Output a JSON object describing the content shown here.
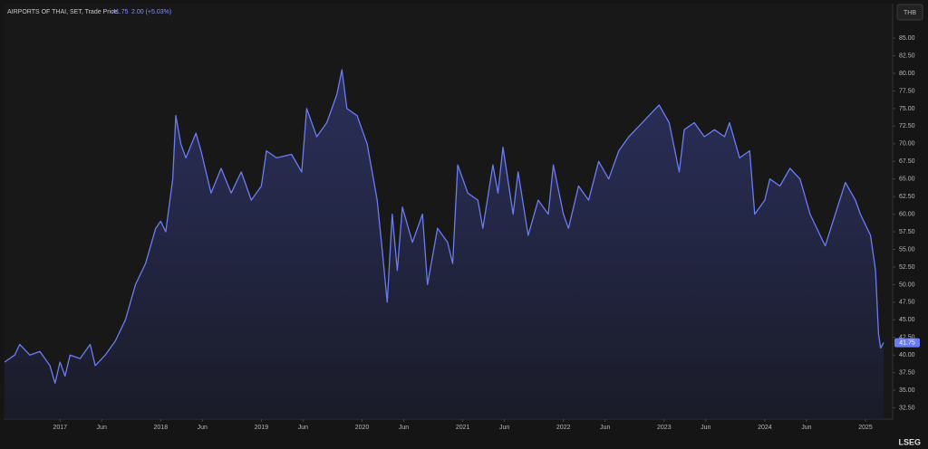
{
  "chart_data": {
    "type": "line",
    "title": "AIRPORTS OF THAI, SET, Trade Price",
    "change_label": "2.00 (+5.03%)",
    "currency": "THB",
    "brand": "LSEG",
    "x": [
      2016.45,
      2016.55,
      2016.6,
      2016.7,
      2016.8,
      2016.9,
      2016.95,
      2017.0,
      2017.05,
      2017.1,
      2017.2,
      2017.3,
      2017.35,
      2017.45,
      2017.55,
      2017.65,
      2017.75,
      2017.85,
      2017.95,
      2018.0,
      2018.05,
      2018.12,
      2018.15,
      2018.2,
      2018.25,
      2018.35,
      2018.4,
      2018.5,
      2018.6,
      2018.7,
      2018.8,
      2018.9,
      2019.0,
      2019.05,
      2019.15,
      2019.3,
      2019.4,
      2019.45,
      2019.55,
      2019.65,
      2019.75,
      2019.8,
      2019.85,
      2019.95,
      2020.05,
      2020.15,
      2020.2,
      2020.25,
      2020.3,
      2020.35,
      2020.4,
      2020.5,
      2020.6,
      2020.65,
      2020.75,
      2020.85,
      2020.9,
      2020.95,
      2021.05,
      2021.15,
      2021.2,
      2021.3,
      2021.35,
      2021.4,
      2021.5,
      2021.55,
      2021.65,
      2021.75,
      2021.85,
      2021.9,
      2022.0,
      2022.05,
      2022.15,
      2022.25,
      2022.35,
      2022.45,
      2022.55,
      2022.65,
      2022.75,
      2022.85,
      2022.95,
      2023.05,
      2023.15,
      2023.2,
      2023.3,
      2023.4,
      2023.5,
      2023.6,
      2023.65,
      2023.75,
      2023.85,
      2023.9,
      2024.0,
      2024.05,
      2024.15,
      2024.25,
      2024.35,
      2024.45,
      2024.55,
      2024.6,
      2024.7,
      2024.8,
      2024.9,
      2024.95,
      2025.05,
      2025.1,
      2025.13,
      2025.15,
      2025.18
    ],
    "series": [
      {
        "name": "AIRPORTS OF THAI",
        "color": "#6b7cf2",
        "values": [
          39,
          40,
          41.5,
          40,
          40.5,
          38.5,
          36,
          39,
          37,
          40,
          39.5,
          41.5,
          38.5,
          40,
          42,
          45,
          50,
          53,
          58,
          59,
          57.5,
          65,
          74,
          70,
          68,
          71.5,
          69,
          63,
          66.5,
          63,
          66,
          62,
          64,
          69,
          68,
          68.5,
          66,
          75,
          71,
          73,
          77,
          80.5,
          75,
          74,
          70,
          62,
          55,
          47.5,
          60,
          52,
          61,
          56,
          60,
          50,
          58,
          56,
          53,
          67,
          63,
          62,
          58,
          67,
          63,
          69.5,
          60,
          66,
          57,
          62,
          60,
          67,
          60,
          58,
          64,
          62,
          67.5,
          65,
          69,
          71,
          72.5,
          74,
          75.5,
          73,
          66,
          72,
          73,
          71,
          72,
          71,
          73,
          68,
          69,
          60,
          62,
          65,
          64,
          66.5,
          65,
          60,
          57,
          55.5,
          60,
          64.5,
          62,
          60,
          57,
          52,
          43,
          41,
          41.75
        ]
      }
    ],
    "xlim": [
      2016.44,
      2025.27
    ],
    "xticks": [
      2017,
      {
        "value": 2017.414,
        "label": "Jun"
      },
      2018,
      {
        "value": 2018.414,
        "label": "Jun"
      },
      2019,
      {
        "value": 2019.414,
        "label": "Jun"
      },
      2020,
      {
        "value": 2020.414,
        "label": "Jun"
      },
      2021,
      {
        "value": 2021.414,
        "label": "Jun"
      },
      2022,
      {
        "value": 2022.414,
        "label": "Jun"
      },
      2023,
      {
        "value": 2023.414,
        "label": "Jun"
      },
      2024,
      {
        "value": 2024.414,
        "label": "Jun"
      },
      2025
    ],
    "ylim": [
      30.9,
      89.9
    ],
    "yticks": [
      {
        "value": 32.5,
        "label": "32.50"
      },
      {
        "value": 35,
        "label": "35.00"
      },
      {
        "value": 37.5,
        "label": "37.50"
      },
      {
        "value": 40,
        "label": "40.00"
      },
      {
        "value": 42.5,
        "label": "42.50"
      },
      {
        "value": 45,
        "label": "45.00"
      },
      {
        "value": 47.5,
        "label": "47.50"
      },
      {
        "value": 50,
        "label": "50.00"
      },
      {
        "value": 52.5,
        "label": "52.50"
      },
      {
        "value": 55,
        "label": "55.00"
      },
      {
        "value": 57.5,
        "label": "57.50"
      },
      {
        "value": 60,
        "label": "60.00"
      },
      {
        "value": 62.5,
        "label": "62.50"
      },
      {
        "value": 65,
        "label": "65.00"
      },
      {
        "value": 67.5,
        "label": "67.50"
      },
      {
        "value": 70,
        "label": "70.00"
      },
      {
        "value": 72.5,
        "label": "72.50"
      },
      {
        "value": 75,
        "label": "75.00"
      },
      {
        "value": 77.5,
        "label": "77.50"
      },
      {
        "value": 80,
        "label": "80.00"
      },
      {
        "value": 82.5,
        "label": "82.50"
      },
      {
        "value": 85,
        "label": "85.00"
      }
    ],
    "grid": false
  }
}
